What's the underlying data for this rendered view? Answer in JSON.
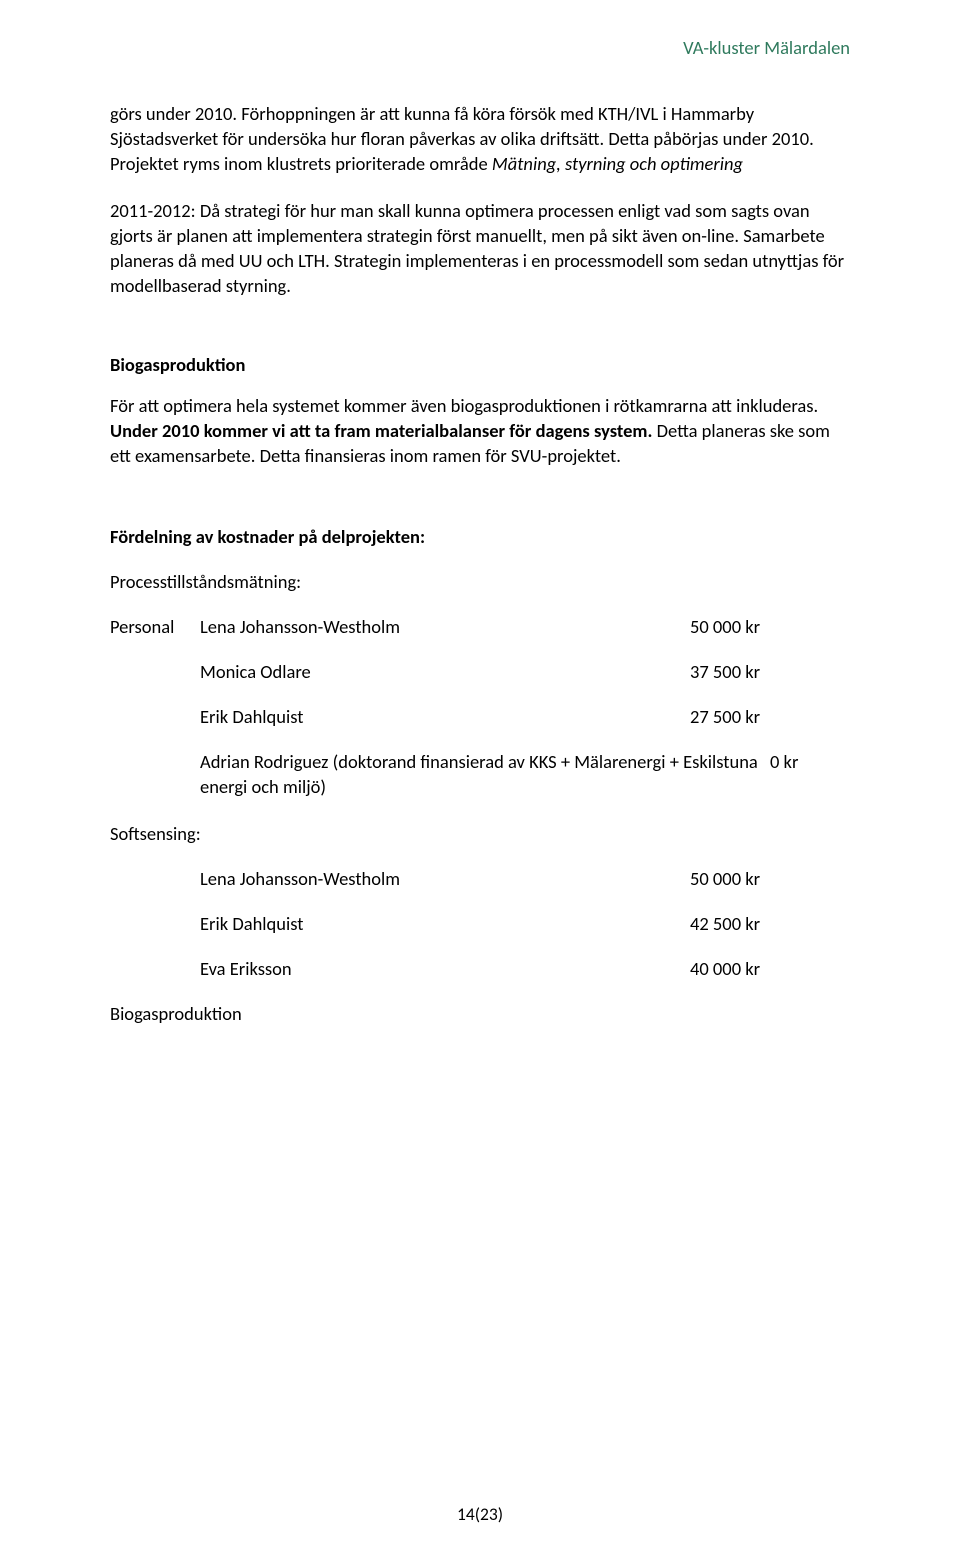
{
  "header": {
    "brand": "VA-kluster Mälardalen"
  },
  "paragraphs": {
    "p1": "görs under 2010. Förhoppningen är att kunna få köra försök med KTH/IVL i Hammarby Sjöstadsverket för undersöka hur floran påverkas av olika driftsätt. Detta påbörjas under 2010. Projektet ryms inom klustrets prioriterade område ",
    "p1_italic": "Mätning, styrning och optimering",
    "p2_lead": "2011-2012:",
    "p2_rest": " Då strategi för hur man skall kunna optimera processen enligt vad som sagts ovan gjorts är planen att implementera strategin först manuellt, men på sikt även on-line. Samarbete planeras då med UU och LTH. Strategin implementeras i en processmodell som sedan utnyttjas för modellbaserad styrning.",
    "biogas_heading": "Biogasproduktion",
    "biogas_p": "För att optimera hela systemet kommer även biogasproduktionen i rötkamrarna att inkluderas. ",
    "biogas_bold": "Under 2010 kommer vi att ta fram materialbalanser för dagens system.",
    "biogas_p2": " Detta planeras ske som ett examensarbete. Detta finansieras inom ramen för SVU-projektet."
  },
  "costs": {
    "heading": "Fördelning av kostnader på delprojekten:",
    "sec1_label": "Processtillståndsmätning:",
    "personal_label": "Personal",
    "rows1": [
      {
        "name": "Lena Johansson-Westholm",
        "amt": "50 000 kr"
      },
      {
        "name": "Monica Odlare",
        "amt": "37 500 kr"
      },
      {
        "name": "Erik Dahlquist",
        "amt": "27 500 kr"
      }
    ],
    "note_text": "Adrian Rodriguez (doktorand finansierad av KKS + Mälarenergi + Eskilstuna energi och miljö)",
    "note_amt": "0 kr",
    "sec2_label": "Softsensing:",
    "rows2": [
      {
        "name": "Lena Johansson-Westholm",
        "amt": "50 000 kr"
      },
      {
        "name": "Erik Dahlquist",
        "amt": "42 500 kr"
      },
      {
        "name": "Eva Eriksson",
        "amt": "40 000 kr"
      }
    ],
    "sec3_label": "Biogasproduktion"
  },
  "footer": {
    "pagenum": "14(23)"
  }
}
